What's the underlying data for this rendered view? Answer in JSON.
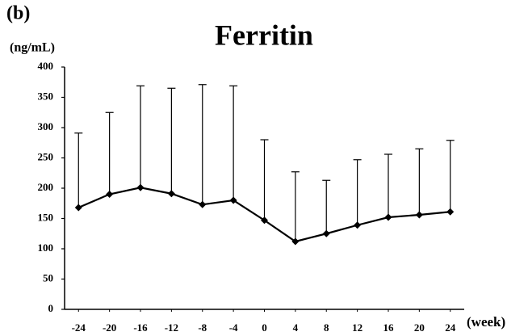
{
  "chart_data": {
    "type": "line",
    "panel_label": "(b)",
    "title": "Ferritin",
    "y_label": "(ng/mL)",
    "x_label": "(week)",
    "x": [
      -24,
      -20,
      -16,
      -12,
      -8,
      -4,
      0,
      4,
      8,
      12,
      16,
      20,
      24
    ],
    "series": [
      {
        "name": "Ferritin",
        "color": "#000000",
        "values": [
          168,
          190,
          201,
          191,
          173,
          180,
          147,
          112,
          125,
          139,
          152,
          156,
          161
        ],
        "errors": [
          123,
          135,
          168,
          174,
          198,
          189,
          133,
          115,
          88,
          108,
          104,
          109,
          118
        ]
      }
    ],
    "xlim": [
      -25.8,
      25.8
    ],
    "xticks": [
      -24,
      -20,
      -16,
      -12,
      -8,
      -4,
      0,
      4,
      8,
      12,
      16,
      20,
      24
    ],
    "ylim": [
      0,
      400
    ],
    "yticks": [
      0,
      50,
      100,
      150,
      200,
      250,
      300,
      350,
      400
    ]
  }
}
